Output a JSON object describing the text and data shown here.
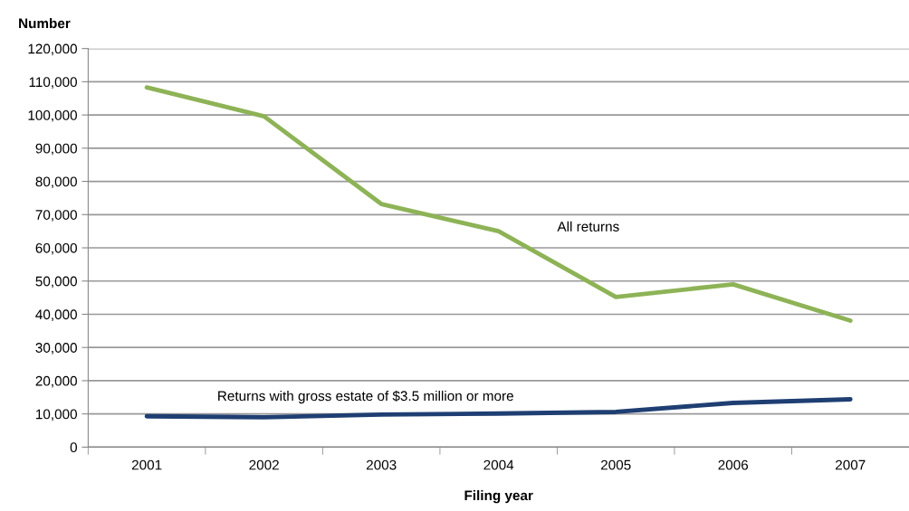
{
  "chart_data": {
    "type": "line",
    "ylabel": "Number",
    "xlabel": "Filing year",
    "categories": [
      "2001",
      "2002",
      "2003",
      "2004",
      "2005",
      "2006",
      "2007"
    ],
    "series": [
      {
        "name": "All returns",
        "color": "#8db356",
        "values": [
          108300,
          99600,
          73200,
          65000,
          45200,
          49000,
          38100
        ]
      },
      {
        "name": "Returns with gross estate of $3.5 million or more",
        "color": "#1f3f73",
        "values": [
          9300,
          9000,
          9800,
          10100,
          10600,
          13300,
          14400
        ]
      }
    ],
    "ylim": [
      0,
      120000
    ],
    "yticks": [
      {
        "value": 0,
        "label": "0"
      },
      {
        "value": 10000,
        "label": "10,000"
      },
      {
        "value": 20000,
        "label": "20,000"
      },
      {
        "value": 30000,
        "label": "30,000"
      },
      {
        "value": 40000,
        "label": "40,000"
      },
      {
        "value": 50000,
        "label": "50,000"
      },
      {
        "value": 60000,
        "label": "60,000"
      },
      {
        "value": 70000,
        "label": "70,000"
      },
      {
        "value": 80000,
        "label": "80,000"
      },
      {
        "value": 90000,
        "label": "90,000"
      },
      {
        "value": 100000,
        "label": "100,000"
      },
      {
        "value": 110000,
        "label": "110,000"
      },
      {
        "value": 120000,
        "label": "120,000"
      }
    ],
    "grid": "y",
    "legend": false,
    "marker": "none",
    "line_style": "solid"
  }
}
